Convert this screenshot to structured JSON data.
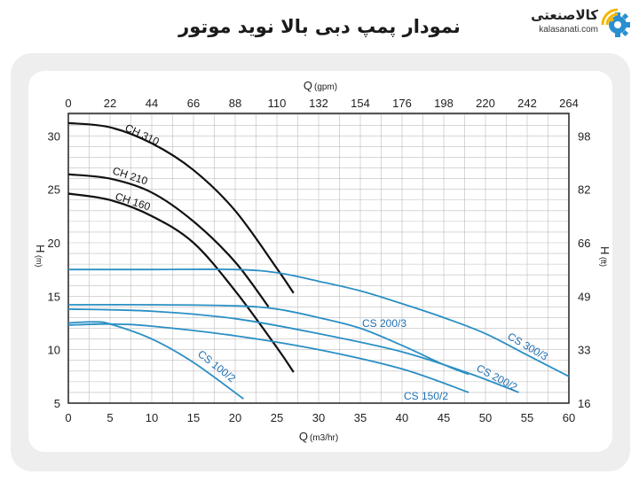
{
  "header": {
    "title": "نمودار پمپ دبی بالا نوید موتور",
    "logo_text": "کالاصنعتی",
    "logo_domain": "kalasanati.com",
    "logo_icon": "gear-wifi-icon"
  },
  "colors": {
    "ch_curve": "#111111",
    "cs_curve": "#2a8fc4",
    "cs_label": "#1f6fb2",
    "grid": "#bdbdbd"
  },
  "chart_data": {
    "type": "line",
    "x_bottom": {
      "label": "Q",
      "unit": "(m3/hr)",
      "range": [
        0,
        60
      ],
      "ticks": [
        "0",
        "5",
        "10",
        "15",
        "20",
        "25",
        "30",
        "35",
        "40",
        "45",
        "50",
        "55",
        "60"
      ]
    },
    "x_top": {
      "label": "Q",
      "unit": "(gpm)",
      "ticks": [
        "0",
        "22",
        "44",
        "66",
        "88",
        "110",
        "132",
        "154",
        "176",
        "198",
        "220",
        "242",
        "264"
      ]
    },
    "y_left": {
      "label": "H",
      "unit": "(m)",
      "range": [
        5,
        32.1
      ],
      "ticks": [
        "5",
        "10",
        "15",
        "20",
        "25",
        "30"
      ]
    },
    "y_right": {
      "label": "H",
      "unit": "(ft)",
      "ticks": [
        "16",
        "33",
        "49",
        "66",
        "82",
        "98"
      ]
    },
    "grid": true,
    "series": [
      {
        "name": "CH 310",
        "group": "ch",
        "points": [
          [
            0,
            31.2
          ],
          [
            5,
            30.8
          ],
          [
            10,
            29.3
          ],
          [
            15,
            26.8
          ],
          [
            20,
            23
          ],
          [
            25,
            17.6
          ],
          [
            27,
            15.3
          ]
        ]
      },
      {
        "name": "CH 210",
        "group": "ch",
        "points": [
          [
            0,
            26.4
          ],
          [
            5,
            26
          ],
          [
            10,
            24.7
          ],
          [
            15,
            22
          ],
          [
            20,
            18.2
          ],
          [
            24,
            14.0
          ]
        ]
      },
      {
        "name": "CH 160",
        "group": "ch",
        "points": [
          [
            0,
            24.6
          ],
          [
            5,
            24
          ],
          [
            10,
            22.5
          ],
          [
            15,
            20
          ],
          [
            20,
            15.5
          ],
          [
            25,
            10.2
          ],
          [
            27,
            7.9
          ]
        ]
      },
      {
        "name": "CS 300/3",
        "group": "cs",
        "points": [
          [
            0,
            17.5
          ],
          [
            10,
            17.5
          ],
          [
            20,
            17.5
          ],
          [
            25,
            17.2
          ],
          [
            30,
            16.4
          ],
          [
            35,
            15.5
          ],
          [
            40,
            14.3
          ],
          [
            45,
            13
          ],
          [
            50,
            11.5
          ],
          [
            55,
            9.5
          ],
          [
            60,
            7.5
          ]
        ]
      },
      {
        "name": "CS 200/3",
        "group": "cs",
        "points": [
          [
            0,
            14.2
          ],
          [
            10,
            14.2
          ],
          [
            20,
            14.1
          ],
          [
            25,
            13.8
          ],
          [
            30,
            13
          ],
          [
            35,
            12
          ],
          [
            40,
            10.4
          ],
          [
            45,
            8.6
          ],
          [
            48,
            7.7
          ]
        ]
      },
      {
        "name": "CS 200/2",
        "group": "cs",
        "points": [
          [
            0,
            13.8
          ],
          [
            10,
            13.6
          ],
          [
            20,
            12.9
          ],
          [
            30,
            11.5
          ],
          [
            40,
            9.8
          ],
          [
            48,
            7.8
          ],
          [
            54,
            6
          ]
        ]
      },
      {
        "name": "CS 150/2",
        "group": "cs",
        "points": [
          [
            0,
            12.3
          ],
          [
            5,
            12.4
          ],
          [
            10,
            12.2
          ],
          [
            20,
            11.3
          ],
          [
            30,
            10
          ],
          [
            40,
            8.2
          ],
          [
            48,
            6
          ]
        ]
      },
      {
        "name": "CS 100/2",
        "group": "cs",
        "points": [
          [
            0,
            12.5
          ],
          [
            3,
            12.6
          ],
          [
            5,
            12.4
          ],
          [
            10,
            11
          ],
          [
            15,
            8.8
          ],
          [
            21,
            5.4
          ]
        ]
      }
    ]
  }
}
